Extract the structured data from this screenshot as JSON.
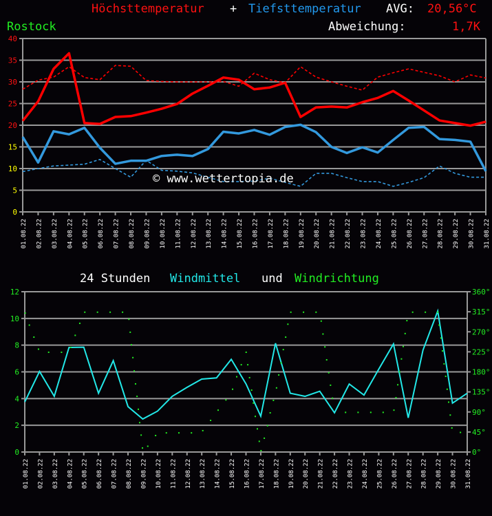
{
  "header": {
    "title_max": "Höchsttemperatur",
    "plus": "+",
    "title_min": "Tiefsttemperatur",
    "avg_label": "AVG:",
    "avg_value": "20,56°C",
    "station": "Rostock",
    "deviation_label": "Abweichung:",
    "deviation_value": "1,7K"
  },
  "watermark": "© www.wettertopia.de",
  "wind_title": {
    "part1": "24 Stunden",
    "part2": "Windmittel",
    "part3": "und",
    "part4": "Windrichtung"
  },
  "colors": {
    "max": "#ff0000",
    "min": "#3399dd",
    "wind": "#22e8e8",
    "direction": "#22ee22",
    "grid": "#999999",
    "axis_low": "#ffff00"
  },
  "chart_data": [
    {
      "type": "line",
      "categories": [
        "01.08.22",
        "02.08.22",
        "03.08.22",
        "04.08.22",
        "05.08.22",
        "06.08.22",
        "07.08.22",
        "08.08.22",
        "09.08.22",
        "10.08.22",
        "11.08.22",
        "12.08.22",
        "13.08.22",
        "14.08.22",
        "15.08.22",
        "16.08.22",
        "17.08.22",
        "18.08.22",
        "19.08.22",
        "20.08.22",
        "21.08.22",
        "22.08.22",
        "23.08.22",
        "24.08.22",
        "25.08.22",
        "26.08.22",
        "27.08.22",
        "28.08.22",
        "29.08.22",
        "30.08.22",
        "31.08.22"
      ],
      "ylim": [
        0,
        40
      ],
      "yticks": [
        "0",
        "5",
        "10",
        "15",
        "20",
        "25",
        "30",
        "35",
        "40"
      ],
      "grid": true,
      "series": [
        {
          "name": "Höchsttemperatur",
          "style": "solid",
          "color": "#ff0000",
          "values": [
            21.0,
            25.5,
            33.0,
            36.6,
            20.5,
            20.3,
            21.9,
            22.1,
            22.9,
            23.8,
            24.9,
            27.3,
            29.1,
            31.0,
            30.5,
            28.3,
            28.7,
            29.8,
            21.9,
            24.1,
            24.3,
            24.1,
            25.3,
            26.3,
            27.9,
            25.7,
            23.4,
            21.1,
            20.5,
            19.9,
            20.8
          ]
        },
        {
          "style": "dashed",
          "color": "#ff0000",
          "values": [
            28.3,
            30.4,
            31.1,
            33.5,
            31.0,
            30.5,
            33.8,
            33.6,
            30.3,
            30.1,
            30.0,
            30.0,
            30.0,
            30.1,
            29.0,
            32.0,
            30.5,
            29.8,
            33.5,
            31.1,
            30.0,
            29.0,
            28.1,
            31.1,
            32.1,
            33.0,
            32.2,
            31.4,
            30.0,
            31.6,
            30.9
          ]
        },
        {
          "name": "Tiefsttemperatur",
          "style": "solid",
          "color": "#3399dd",
          "values": [
            17.3,
            11.4,
            18.6,
            17.9,
            19.4,
            14.8,
            11.1,
            11.8,
            11.8,
            12.9,
            13.2,
            12.9,
            14.5,
            18.5,
            18.1,
            18.9,
            17.8,
            19.6,
            20.1,
            18.4,
            15.0,
            13.6,
            14.9,
            13.7,
            16.6,
            19.4,
            19.6,
            16.8,
            16.6,
            16.2,
            9.4
          ]
        },
        {
          "style": "dashed",
          "color": "#3399dd",
          "values": [
            9.3,
            10.0,
            10.6,
            10.8,
            11.0,
            12.1,
            10.0,
            8.0,
            11.9,
            9.6,
            9.4,
            9.0,
            8.0,
            7.0,
            7.0,
            7.1,
            7.8,
            6.8,
            5.9,
            8.9,
            8.9,
            7.9,
            7.0,
            7.0,
            5.9,
            6.8,
            7.9,
            10.6,
            8.9,
            8.0,
            8.0
          ]
        }
      ]
    },
    {
      "type": "line",
      "title": "24 Stunden Windmittel und Windrichtung",
      "categories": [
        "01.08.22",
        "02.08.22",
        "03.08.22",
        "04.08.22",
        "05.08.22",
        "06.08.22",
        "07.08.22",
        "08.08.22",
        "09.08.22",
        "10.08.22",
        "11.08.22",
        "12.08.22",
        "13.08.22",
        "14.08.22",
        "15.08.22",
        "16.08.22",
        "17.08.22",
        "18.08.22",
        "19.08.22",
        "20.08.22",
        "21.08.22",
        "22.08.22",
        "23.08.22",
        "24.08.22",
        "25.08.22",
        "26.08.22",
        "27.08.22",
        "28.08.22",
        "29.08.22",
        "30.08.22",
        "31.08.22"
      ],
      "ylim": [
        0,
        12
      ],
      "yticks": [
        "0",
        "2",
        "4",
        "6",
        "8",
        "10",
        "12"
      ],
      "y2lim": [
        0,
        360
      ],
      "y2ticks": [
        "0°",
        "45°",
        "90°",
        "135°",
        "180°",
        "225°",
        "270°",
        "315°",
        "360°"
      ],
      "grid": true,
      "series": [
        {
          "name": "Windmittel",
          "type": "line",
          "color": "#22e8e8",
          "values": [
            3.75,
            6.03,
            4.17,
            7.83,
            7.85,
            4.4,
            6.84,
            3.4,
            2.47,
            3.06,
            4.17,
            4.84,
            5.46,
            5.55,
            6.94,
            5.1,
            2.68,
            8.14,
            4.4,
            4.17,
            4.55,
            2.94,
            5.09,
            4.26,
            6.2,
            8.09,
            2.56,
            7.63,
            10.55,
            3.66,
            4.4
          ]
        },
        {
          "name": "Windrichtung",
          "type": "scatter",
          "axis": "y2",
          "color": "#22ee22",
          "x_days": [
            1.03,
            1.31,
            1.62,
            1.93,
            2.62,
            3.49,
            4.11,
            4.42,
            4.73,
            5.07,
            5.93,
            6.79,
            7.63,
            8.06,
            8.15,
            8.23,
            8.33,
            8.42,
            8.51,
            8.61,
            8.7,
            8.79,
            8.89,
            8.98,
            9.34,
            9.87,
            10.6,
            11.45,
            12.3,
            13.07,
            13.6,
            14.11,
            14.64,
            15.09,
            15.37,
            15.68,
            16.01,
            16.12,
            16.24,
            16.38,
            16.5,
            16.63,
            16.77,
            16.9,
            17.02,
            17.24,
            17.46,
            17.64,
            17.86,
            18.07,
            18.22,
            18.38,
            18.53,
            18.69,
            18.84,
            19.04,
            19.9,
            20.75,
            21.1,
            21.22,
            21.35,
            21.47,
            21.61,
            21.73,
            21.86,
            22.75,
            23.6,
            24.46,
            25.3,
            26.03,
            26.17,
            26.29,
            26.42,
            26.54,
            26.66,
            26.79,
            26.91,
            27.3,
            28.16,
            29.0,
            29.1,
            29.22,
            29.32,
            29.43,
            29.54,
            29.64,
            29.74,
            29.85,
            29.96,
            30.54
          ],
          "values": [
            312,
            285,
            258,
            231,
            224,
            224,
            235,
            262,
            289,
            314,
            314,
            314,
            314,
            298,
            269,
            241,
            212,
            182,
            153,
            125,
            96,
            66,
            38,
            9,
            13,
            37,
            43,
            43,
            43,
            48,
            71,
            94,
            117,
            141,
            169,
            196,
            224,
            196,
            167,
            139,
            110,
            80,
            52,
            24,
            3,
            31,
            59,
            88,
            116,
            144,
            173,
            200,
            230,
            258,
            287,
            314,
            314,
            314,
            294,
            265,
            236,
            207,
            178,
            150,
            121,
            89,
            89,
            89,
            89,
            94,
            122,
            151,
            180,
            209,
            237,
            266,
            295,
            314,
            314,
            314,
            285,
            256,
            227,
            198,
            170,
            141,
            112,
            83,
            54,
            44
          ]
        }
      ]
    }
  ]
}
